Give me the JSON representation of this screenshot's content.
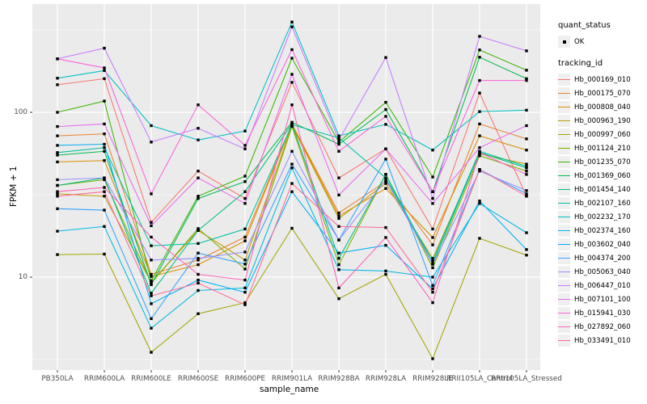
{
  "figure": {
    "background": "#FFFFFF",
    "panel_background": "#EBEBEB",
    "gridline_color": "#FFFFFF",
    "point_color": "#000000",
    "axis_text_color": "#4D4D4D"
  },
  "axes": {
    "x_title": "sample_name",
    "y_title": "FPKM + 1",
    "y_major_ticks": [
      {
        "label": "100",
        "value": 100
      },
      {
        "label": "10",
        "value": 10
      }
    ],
    "y_minor_ticks": [
      316.23,
      31.62,
      3.1623
    ]
  },
  "legend": {
    "quant_status_title": "quant_status",
    "quant_status_items": [
      {
        "label": "OK",
        "glyph": "black-point"
      }
    ],
    "tracking_id_title": "tracking_id"
  },
  "chart_data": {
    "type": "line",
    "title": "",
    "xlabel": "sample_name",
    "ylabel": "FPKM + 1",
    "y_scale": "log10",
    "ylim": [
      2.7,
      455
    ],
    "grid": true,
    "legend_position": "right",
    "point_shape": "small-black-square",
    "categories": [
      "PB350LA",
      "RRIM600LA",
      "RRIM600LE",
      "RRIM600SE",
      "RRIM600PE",
      "RRIM901LA",
      "RRIM928BA",
      "RRIM928LA",
      "RRIM928LE",
      "RRII105LA_Control",
      "RRII105LA_Stressed"
    ],
    "series": [
      {
        "name": "Hb_000169_010",
        "color": "#F8766D",
        "values": [
          147,
          160,
          21.5,
          44,
          30,
          152,
          40,
          60,
          19.6,
          131,
          31
        ]
      },
      {
        "name": "Hb_000175_070",
        "color": "#EA8331",
        "values": [
          72,
          74,
          10.4,
          12.7,
          17.5,
          85,
          24.5,
          38,
          15.7,
          85,
          69
        ]
      },
      {
        "name": "Hb_000808_040",
        "color": "#D89000",
        "values": [
          50,
          51,
          10.1,
          11.9,
          16.6,
          84,
          23.5,
          34.5,
          17.4,
          72,
          59
        ]
      },
      {
        "name": "Hb_000963_190",
        "color": "#C09B00",
        "values": [
          32,
          31,
          9.3,
          19.2,
          12.7,
          83,
          22.7,
          37,
          13,
          56,
          48.5
        ]
      },
      {
        "name": "Hb_000997_060",
        "color": "#A3A500",
        "values": [
          13.7,
          13.8,
          3.5,
          6,
          7,
          19.8,
          7.4,
          10.4,
          3.2,
          17.2,
          13.6
        ]
      },
      {
        "name": "Hb_001124_210",
        "color": "#7CAE00",
        "values": [
          36,
          39,
          9.2,
          19.7,
          11.2,
          82,
          11.9,
          42,
          11.4,
          54.5,
          44
        ]
      },
      {
        "name": "Hb_001235_070",
        "color": "#39B600",
        "values": [
          100,
          117,
          9.5,
          31,
          41,
          213,
          66,
          115,
          40.5,
          239,
          180
        ]
      },
      {
        "name": "Hb_001369_060",
        "color": "#00BB4E",
        "values": [
          55,
          58,
          9,
          30,
          38,
          87,
          64,
          104,
          33,
          216,
          160
        ]
      },
      {
        "name": "Hb_001454_140",
        "color": "#00BF7D",
        "values": [
          36,
          40,
          8,
          19.2,
          33,
          85,
          13,
          42,
          12,
          57,
          46
        ]
      },
      {
        "name": "Hb_002107_160",
        "color": "#00C1A3",
        "values": [
          57,
          61,
          15.5,
          16,
          19.6,
          84,
          70,
          40,
          12.5,
          58,
          47
        ]
      },
      {
        "name": "Hb_002232_170",
        "color": "#00BFC4",
        "values": [
          161,
          179,
          83,
          68,
          77,
          353,
          72,
          84.5,
          59,
          101,
          103
        ]
      },
      {
        "name": "Hb_002374_160",
        "color": "#00BAE0",
        "values": [
          19,
          20.3,
          4.9,
          8.3,
          8.6,
          46,
          11.1,
          10.9,
          10,
          28,
          18.6
        ]
      },
      {
        "name": "Hb_003602_040",
        "color": "#00B0F6",
        "values": [
          63,
          64,
          6.9,
          9.6,
          8.1,
          33,
          14,
          15.6,
          8.5,
          29,
          14.7
        ]
      },
      {
        "name": "Hb_004374_200",
        "color": "#35A2FF",
        "values": [
          26,
          25.5,
          5.6,
          14,
          12,
          48.5,
          16.8,
          52,
          8.9,
          45,
          32
        ]
      },
      {
        "name": "Hb_005063_040",
        "color": "#9590FF",
        "values": [
          39,
          40,
          12.7,
          13,
          14.2,
          58,
          16.8,
          39,
          12,
          44,
          33.5
        ]
      },
      {
        "name": "Hb_006447_010",
        "color": "#C77CFF",
        "values": [
          211,
          245,
          66,
          80,
          60,
          330,
          68,
          215,
          30,
          289,
          236
        ]
      },
      {
        "name": "Hb_007101_100",
        "color": "#E76BF3",
        "values": [
          82,
          85,
          20.5,
          40,
          28,
          170,
          31.5,
          60,
          28,
          61,
          83
        ]
      },
      {
        "name": "Hb_015941_030",
        "color": "#FA62DB",
        "values": [
          211,
          186,
          32,
          111,
          63,
          240,
          58,
          94.5,
          33,
          156,
          156
        ]
      },
      {
        "name": "Hb_027892_060",
        "color": "#FF62BC",
        "values": [
          33,
          35,
          17.5,
          10.4,
          9.6,
          111,
          8.6,
          17.4,
          7,
          57,
          42
        ]
      },
      {
        "name": "Hb_033491_010",
        "color": "#FF6A98",
        "values": [
          31,
          33,
          7.7,
          9.2,
          6.8,
          37,
          20.3,
          20,
          8.1,
          45,
          31
        ]
      }
    ]
  }
}
